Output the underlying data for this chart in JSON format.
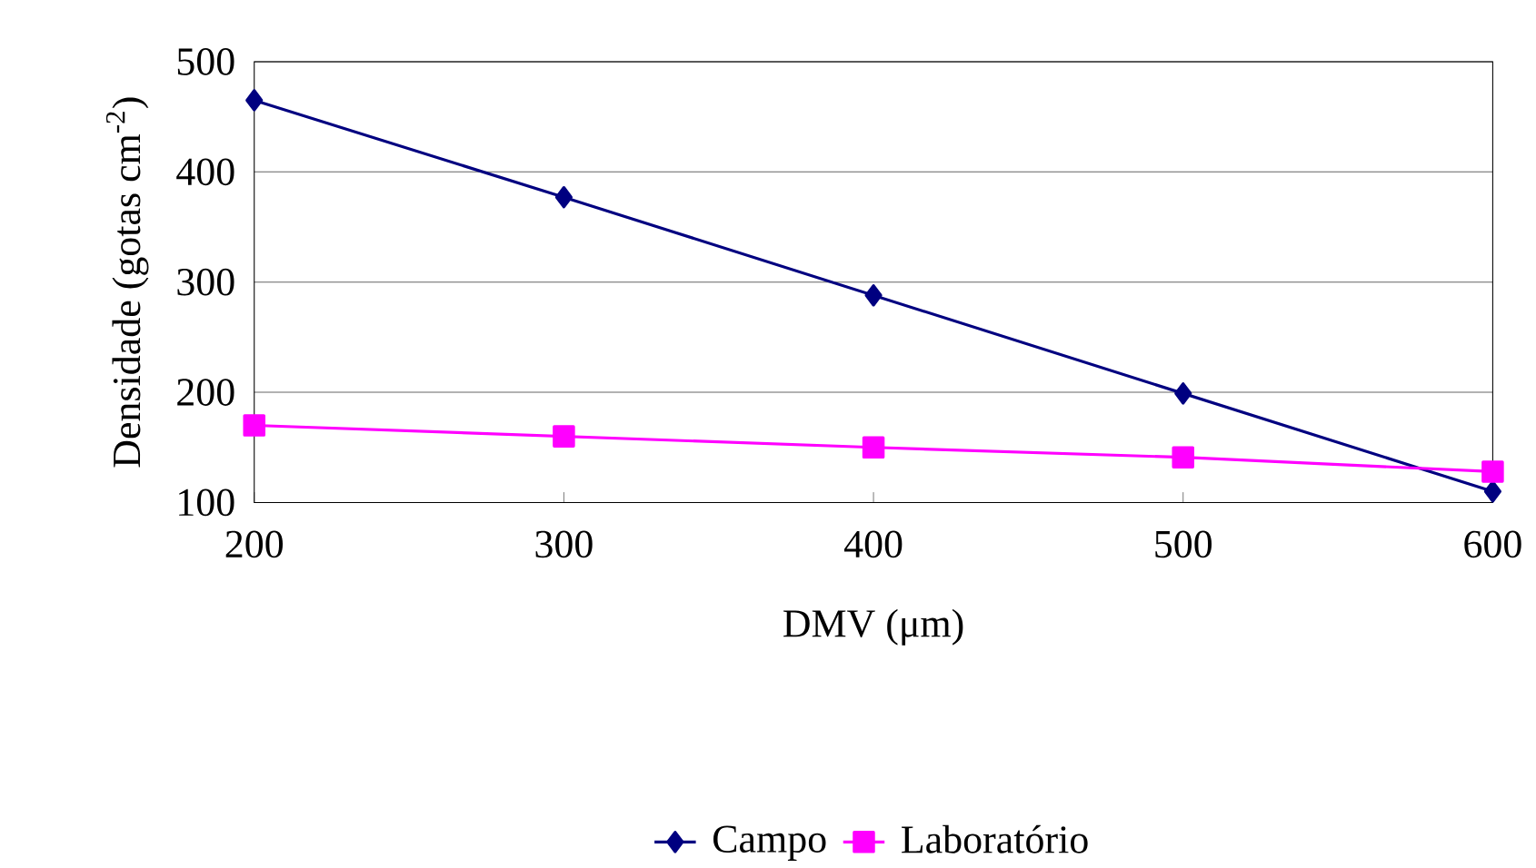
{
  "chart_data": {
    "type": "line",
    "xlabel": "DMV  (μm)",
    "ylabel": "Densidade (gotas cm$^{-2}$)",
    "x": [
      200,
      300,
      400,
      500,
      600
    ],
    "series": [
      {
        "name": "Campo",
        "color": "#000080",
        "marker": "diamond",
        "values": [
          465,
          377,
          288,
          199,
          110
        ]
      },
      {
        "name": "Laboratório",
        "color": "#ff00ff",
        "marker": "square",
        "values": [
          170,
          160,
          150,
          141,
          128
        ]
      }
    ],
    "xlim": [
      200,
      600
    ],
    "xticks": [
      200,
      300,
      400,
      500,
      600
    ],
    "ylim": [
      100,
      500
    ],
    "yticks": [
      100,
      200,
      300,
      400,
      500
    ],
    "grid": "y",
    "legend": "bottom",
    "line_style": "solid"
  }
}
